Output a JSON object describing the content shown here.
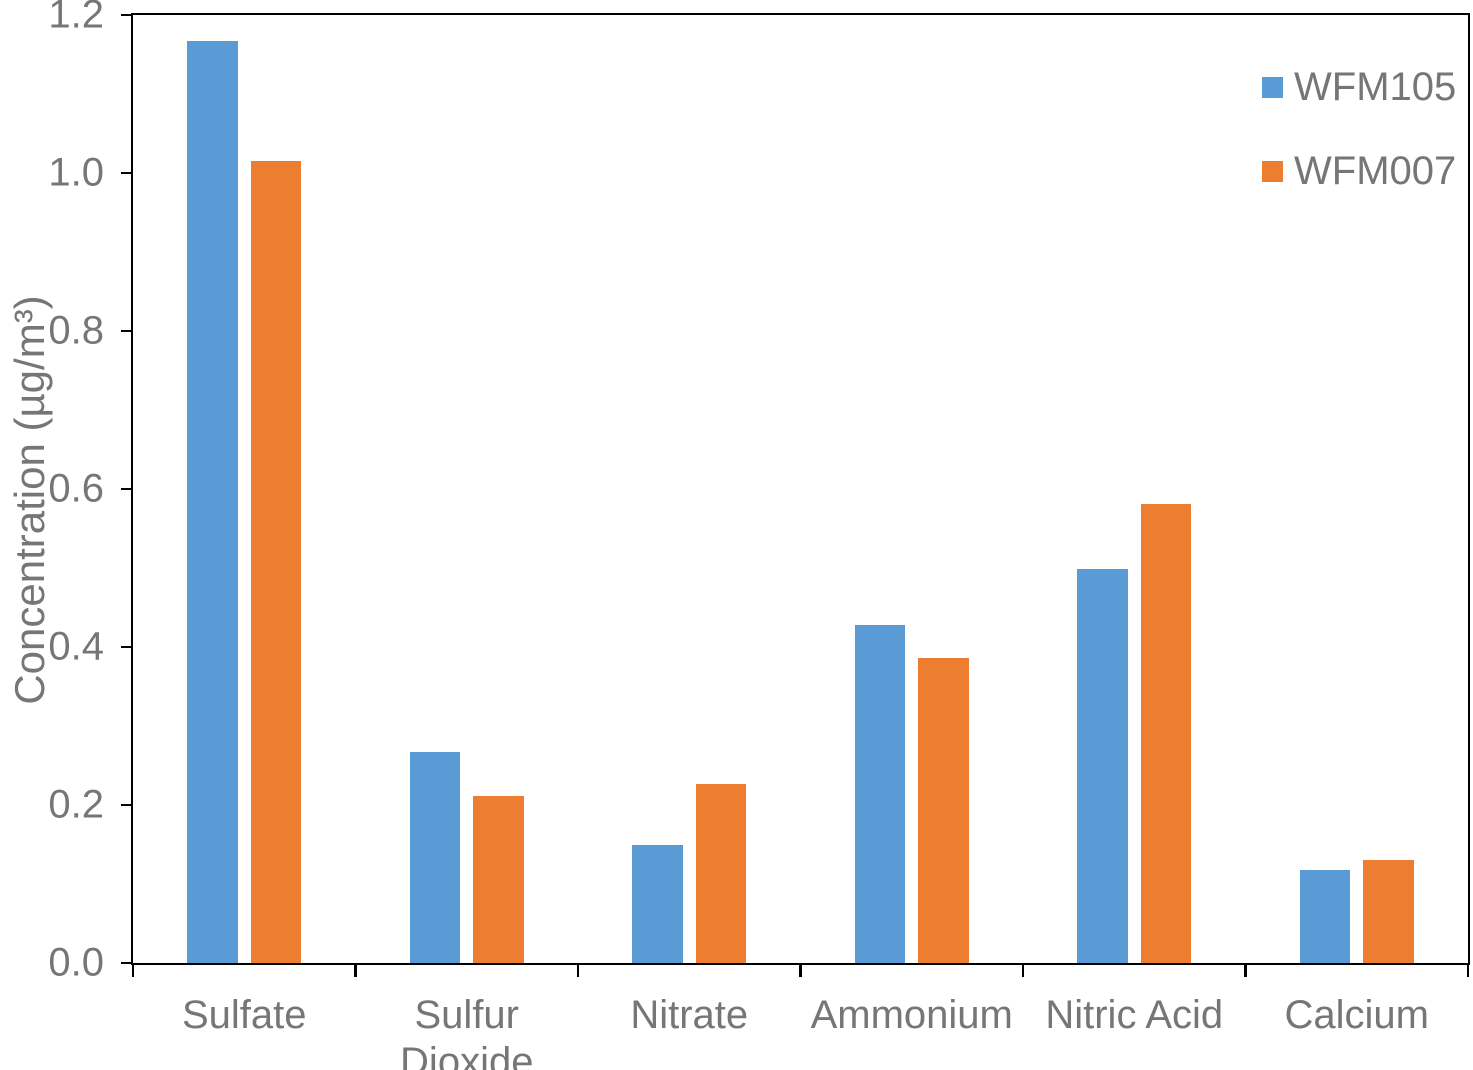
{
  "chart_data": {
    "type": "bar",
    "categories": [
      "Sulfate",
      "Sulfur Dioxide",
      "Nitrate",
      "Ammonium",
      "Nitric Acid",
      "Calcium"
    ],
    "series": [
      {
        "name": "WFM105",
        "color": "#5B9BD5",
        "values": [
          1.167,
          0.267,
          0.149,
          0.428,
          0.499,
          0.118
        ]
      },
      {
        "name": "WFM007",
        "color": "#ED7D31",
        "values": [
          1.015,
          0.211,
          0.227,
          0.386,
          0.581,
          0.13
        ]
      }
    ],
    "xlabel": "",
    "ylabel": "Concentration (µg/m³)",
    "ylim": [
      0,
      1.2
    ],
    "ytick_step": 0.2,
    "ytick_labels": [
      "0.0",
      "0.2",
      "0.4",
      "0.6",
      "0.8",
      "1.0",
      "1.2"
    ],
    "grid": false,
    "legend_position": "top-right",
    "colors": {
      "axis": "#000000",
      "text": "#767676",
      "background": "#FFFFFF"
    }
  }
}
